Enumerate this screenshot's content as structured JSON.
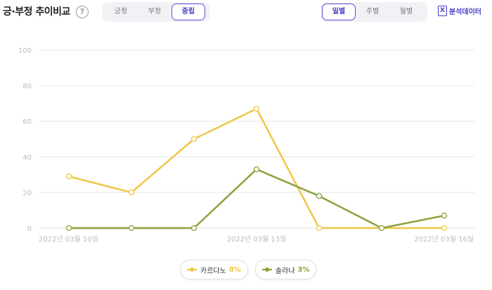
{
  "header": {
    "title": "긍·부정 추이비교",
    "help_icon": "question-circle-icon",
    "sentiment_tabs": [
      {
        "label": "긍정",
        "active": false
      },
      {
        "label": "부정",
        "active": false
      },
      {
        "label": "중립",
        "active": true
      }
    ],
    "period_tabs": [
      {
        "label": "일별",
        "active": true
      },
      {
        "label": "주별",
        "active": false
      },
      {
        "label": "월별",
        "active": false
      }
    ],
    "export_label": "분석데이터",
    "export_icon": "excel-icon"
  },
  "colors": {
    "accent": "#5a4fd8",
    "series1": "#f0c646",
    "series2": "#8aa23a",
    "grid": "#e6e6e6",
    "axis_text": "#bbbbbb"
  },
  "chart_data": {
    "type": "line",
    "title": "",
    "xlabel": "",
    "ylabel": "",
    "ylim": [
      0,
      100
    ],
    "yticks": [
      0,
      20,
      40,
      60,
      80,
      100
    ],
    "x": [
      "2022-03-10",
      "2022-03-11",
      "2022-03-12",
      "2022-03-13",
      "2022-03-14",
      "2022-03-15",
      "2022-03-16"
    ],
    "x_tick_labels": [
      {
        "index": 0,
        "label": "2022년 03월 10일"
      },
      {
        "index": 3,
        "label": "2022년 03월 13일"
      },
      {
        "index": 6,
        "label": "2022년 03월 16일"
      }
    ],
    "grid": true,
    "legend_position": "bottom-center",
    "series": [
      {
        "name": "카르다노",
        "share": "8%",
        "values": [
          29,
          20,
          50,
          67,
          0,
          0,
          0
        ]
      },
      {
        "name": "솔라나",
        "share": "3%",
        "values": [
          0,
          0,
          0,
          33,
          18,
          0,
          7
        ]
      }
    ]
  }
}
